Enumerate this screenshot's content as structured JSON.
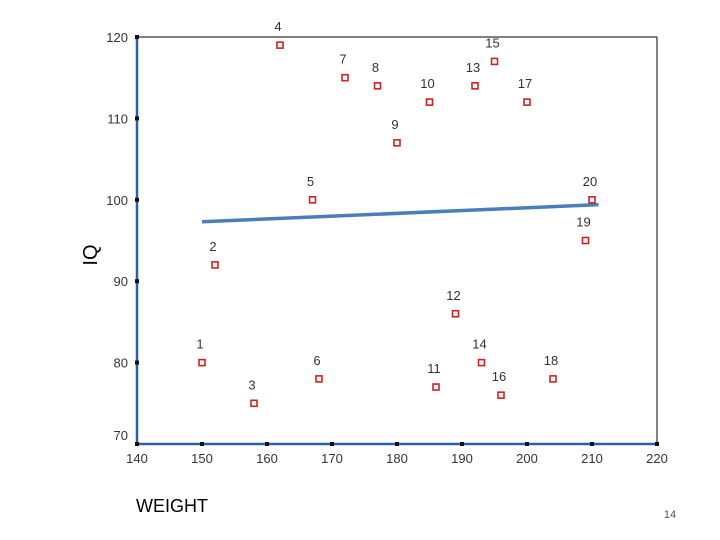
{
  "chart_data": {
    "type": "scatter",
    "xlabel": "WEIGHT",
    "ylabel": "IQ",
    "xlim": [
      140,
      220
    ],
    "ylim": [
      70,
      120
    ],
    "x_ticks": [
      140,
      150,
      160,
      170,
      180,
      190,
      200,
      210,
      220
    ],
    "y_ticks": [
      70,
      80,
      90,
      100,
      110,
      120
    ],
    "grid": false,
    "points": [
      {
        "label": "1",
        "x": 150,
        "y": 80
      },
      {
        "label": "2",
        "x": 152,
        "y": 92
      },
      {
        "label": "3",
        "x": 158,
        "y": 75
      },
      {
        "label": "4",
        "x": 162,
        "y": 119
      },
      {
        "label": "5",
        "x": 167,
        "y": 100
      },
      {
        "label": "6",
        "x": 168,
        "y": 78
      },
      {
        "label": "7",
        "x": 172,
        "y": 115
      },
      {
        "label": "8",
        "x": 177,
        "y": 114
      },
      {
        "label": "9",
        "x": 180,
        "y": 107
      },
      {
        "label": "10",
        "x": 185,
        "y": 112
      },
      {
        "label": "11",
        "x": 186,
        "y": 77
      },
      {
        "label": "12",
        "x": 189,
        "y": 86
      },
      {
        "label": "13",
        "x": 192,
        "y": 114
      },
      {
        "label": "14",
        "x": 193,
        "y": 80
      },
      {
        "label": "15",
        "x": 195,
        "y": 117
      },
      {
        "label": "16",
        "x": 196,
        "y": 76
      },
      {
        "label": "17",
        "x": 200,
        "y": 112
      },
      {
        "label": "18",
        "x": 204,
        "y": 78
      },
      {
        "label": "19",
        "x": 209,
        "y": 95
      },
      {
        "label": "20",
        "x": 210,
        "y": 100
      }
    ],
    "fit_line": {
      "x": [
        150,
        211
      ],
      "y": [
        97.3,
        99.4
      ]
    },
    "marker_color": "#cc2222",
    "line_color": "#4a7ebb",
    "axis_color": "#2b5fa8"
  },
  "slide_number": "14"
}
